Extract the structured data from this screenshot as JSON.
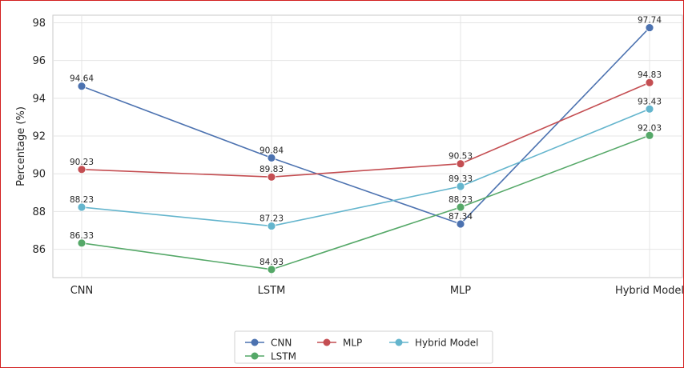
{
  "chart_data": {
    "type": "line",
    "categories": [
      "CNN",
      "LSTM",
      "MLP",
      "Hybrid Model"
    ],
    "ylabel": "Percentage (%)",
    "ylim": [
      84.5,
      98.4
    ],
    "yticks": [
      86,
      88,
      90,
      92,
      94,
      96,
      98
    ],
    "grid": true,
    "legend_position": "bottom-center",
    "series": [
      {
        "name": "CNN",
        "color": "#4c72b0",
        "values": [
          94.64,
          90.84,
          87.34,
          97.74
        ],
        "labels": [
          "94.64",
          "90.84",
          "87.34",
          "97.74"
        ]
      },
      {
        "name": "LSTM",
        "color": "#55a868",
        "values": [
          86.33,
          84.93,
          88.23,
          92.03
        ],
        "labels": [
          "86.33",
          "84.93",
          "88.23",
          "92.03"
        ]
      },
      {
        "name": "MLP",
        "color": "#c44e52",
        "values": [
          90.23,
          89.83,
          90.53,
          94.83
        ],
        "labels": [
          "90.23",
          "89.83",
          "90.53",
          "94.83"
        ]
      },
      {
        "name": "Hybrid Model",
        "color": "#64b5cd",
        "values": [
          88.23,
          87.23,
          89.33,
          93.43
        ],
        "labels": [
          "88.23",
          "87.23",
          "89.33",
          "93.43"
        ]
      }
    ]
  }
}
